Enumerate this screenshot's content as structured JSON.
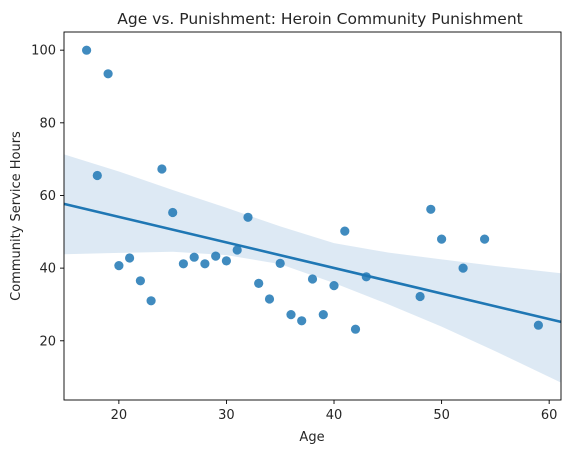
{
  "chart_data": {
    "type": "scatter",
    "title": "Age vs. Punishment: Heroin Community Punishment",
    "xlabel": "Age",
    "ylabel": "Community Service Hours",
    "xlim": [
      14.9,
      61.1
    ],
    "ylim": [
      3.7,
      105.0
    ],
    "xticks": [
      20,
      30,
      40,
      50,
      60
    ],
    "yticks": [
      20,
      40,
      60,
      80,
      100
    ],
    "grid": false,
    "legend": "none",
    "point_color": "#1f77b4",
    "line_color": "#1f77b4",
    "band_color": "#c7daec",
    "points": [
      {
        "x": 17,
        "y": 100.0
      },
      {
        "x": 18,
        "y": 65.5
      },
      {
        "x": 19,
        "y": 93.5
      },
      {
        "x": 20,
        "y": 40.7
      },
      {
        "x": 21,
        "y": 42.8
      },
      {
        "x": 22,
        "y": 36.5
      },
      {
        "x": 23,
        "y": 31.0
      },
      {
        "x": 24,
        "y": 67.3
      },
      {
        "x": 25,
        "y": 55.3
      },
      {
        "x": 26,
        "y": 41.2
      },
      {
        "x": 27,
        "y": 43.0
      },
      {
        "x": 28,
        "y": 41.2
      },
      {
        "x": 29,
        "y": 43.3
      },
      {
        "x": 30,
        "y": 42.0
      },
      {
        "x": 31,
        "y": 45.0
      },
      {
        "x": 32,
        "y": 54.0
      },
      {
        "x": 33,
        "y": 35.8
      },
      {
        "x": 34,
        "y": 31.5
      },
      {
        "x": 35,
        "y": 41.3
      },
      {
        "x": 36,
        "y": 27.2
      },
      {
        "x": 37,
        "y": 25.5
      },
      {
        "x": 38,
        "y": 37.0
      },
      {
        "x": 39,
        "y": 27.2
      },
      {
        "x": 40,
        "y": 35.2
      },
      {
        "x": 41,
        "y": 50.2
      },
      {
        "x": 42,
        "y": 23.2
      },
      {
        "x": 43,
        "y": 37.6
      },
      {
        "x": 48,
        "y": 32.2
      },
      {
        "x": 49,
        "y": 56.2
      },
      {
        "x": 50,
        "y": 48.0
      },
      {
        "x": 52,
        "y": 40.0
      },
      {
        "x": 54,
        "y": 48.0
      },
      {
        "x": 59,
        "y": 24.3
      }
    ],
    "regression": {
      "x": [
        14.9,
        61.1
      ],
      "y": [
        57.7,
        25.2
      ]
    },
    "confidence_band": {
      "x": [
        14.9,
        20,
        25,
        30,
        35,
        40,
        45,
        50,
        55,
        61.1
      ],
      "upper": [
        71.3,
        66.6,
        61.5,
        56.6,
        51.5,
        46.9,
        44.3,
        42.4,
        40.6,
        38.6
      ],
      "lower": [
        43.8,
        44.2,
        44.5,
        43.6,
        41.1,
        35.9,
        30.1,
        23.9,
        17.1,
        8.5
      ]
    }
  }
}
